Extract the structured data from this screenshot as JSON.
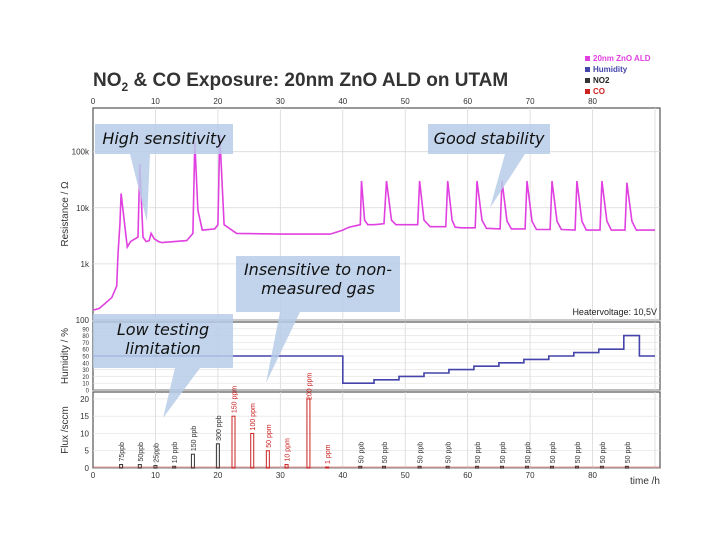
{
  "title": {
    "prefix": "NO",
    "sub": "2",
    "rest": " & CO Exposure: 20nm ZnO  ALD on UTAM"
  },
  "legend": [
    {
      "label": "20nm ZnO ALD",
      "color": "#e040e0"
    },
    {
      "label": "Humidity",
      "color": "#4444aa"
    },
    {
      "label": "NO2",
      "color": "#333333"
    },
    {
      "label": "CO",
      "color": "#cc2222"
    }
  ],
  "callouts": {
    "high_sensitivity": "High sensitivity",
    "good_stability": "Good stability",
    "insensitive": "Insensitive to non-measured gas",
    "low_limit": "Low testing limitation"
  },
  "chart_data": [
    {
      "type": "line",
      "name": "resistance",
      "ylabel": "Resistance / Ω",
      "yscale": "log",
      "ylim": [
        100,
        600000
      ],
      "xlim": [
        0,
        100
      ],
      "x_ticks_top": [
        0,
        10,
        20,
        30,
        40,
        50,
        60,
        70,
        80
      ],
      "y_ticks": [
        {
          "v": 100,
          "label": "100"
        },
        {
          "v": 1000,
          "label": "1k"
        },
        {
          "v": 10000,
          "label": "10k"
        },
        {
          "v": 100000,
          "label": "100k"
        }
      ],
      "annotation": "Heatervoltage: 10,5V",
      "series": [
        {
          "color": "#e040e0",
          "x": [
            0,
            1,
            3,
            3.8,
            4,
            4.3,
            4.5,
            5.3,
            5.5,
            6,
            7.2,
            7.5,
            8,
            8.5,
            9,
            9.3,
            9.8,
            10.5,
            11,
            15,
            16,
            16.3,
            16.8,
            17.5,
            19.5,
            20,
            20.3,
            21,
            23,
            30,
            35,
            38,
            40,
            41,
            42.8,
            43,
            43.5,
            44,
            45,
            46.6,
            47,
            47.8,
            48.5,
            50,
            52,
            52.3,
            53,
            54,
            55,
            56.5,
            56.8,
            57.5,
            58,
            59,
            61.2,
            61.5,
            62.3,
            63,
            65.2,
            65.5,
            66.3,
            67,
            69.2,
            69.5,
            70.3,
            71,
            73.2,
            73.5,
            74.3,
            75,
            77.2,
            77.5,
            78.3,
            79,
            81.2,
            81.5,
            82.3,
            83,
            85.2,
            85.5,
            86.3,
            87,
            88,
            89,
            90
          ],
          "y": [
            150,
            160,
            250,
            400,
            1500,
            5000,
            18000,
            3000,
            2000,
            2500,
            3000,
            60000,
            3000,
            2500,
            2600,
            3500,
            2800,
            2500,
            2400,
            2600,
            3500,
            150000,
            9000,
            4000,
            4200,
            5000,
            200000,
            5000,
            3500,
            3400,
            3400,
            3400,
            4000,
            4500,
            5000,
            30000,
            6000,
            5000,
            5000,
            5200,
            30000,
            6000,
            5000,
            5000,
            5000,
            30000,
            6000,
            4600,
            4600,
            4600,
            30000,
            6000,
            4500,
            4400,
            4400,
            30000,
            6000,
            4300,
            4200,
            30000,
            5800,
            4200,
            4200,
            30000,
            5800,
            4100,
            4100,
            30000,
            5800,
            4100,
            4000,
            30000,
            5800,
            4000,
            4000,
            30000,
            5800,
            4000,
            4000,
            28000,
            5800,
            4000,
            4000,
            4000,
            4000
          ]
        }
      ]
    },
    {
      "type": "line",
      "name": "humidity",
      "ylabel": "Humidity / %",
      "ylim": [
        0,
        100
      ],
      "y_ticks": [
        0,
        10,
        20,
        30,
        40,
        50,
        60,
        70,
        80,
        90
      ],
      "series": [
        {
          "color": "#4444aa",
          "x": [
            0,
            40,
            40,
            45,
            45,
            49,
            49,
            53,
            53,
            57,
            57,
            61,
            61,
            65,
            65,
            69,
            69,
            73,
            73,
            77,
            77,
            81,
            81,
            85,
            85,
            87.5,
            87.5,
            90
          ],
          "y": [
            50,
            50,
            10,
            10,
            15,
            15,
            20,
            20,
            25,
            25,
            30,
            30,
            35,
            35,
            40,
            40,
            45,
            45,
            50,
            50,
            55,
            55,
            60,
            60,
            80,
            80,
            50,
            50
          ]
        }
      ]
    },
    {
      "type": "bar",
      "name": "gas-flux",
      "ylabel": "Flux /sccm",
      "xlabel": "time  /h",
      "ylim": [
        0,
        22
      ],
      "xlim": [
        0,
        100
      ],
      "y_ticks": [
        0,
        5,
        10,
        15,
        20
      ],
      "x_ticks": [
        0,
        10,
        20,
        30,
        40,
        50,
        60,
        70,
        80
      ],
      "bars": [
        {
          "x": 4.5,
          "v": 1,
          "label": "75ppb",
          "color": "#333333"
        },
        {
          "x": 7.5,
          "v": 1,
          "label": "50ppb",
          "color": "#333333"
        },
        {
          "x": 10,
          "v": 0.7,
          "label": "25ppb",
          "color": "#333333"
        },
        {
          "x": 13,
          "v": 0.5,
          "label": "10 ppb",
          "color": "#333333"
        },
        {
          "x": 16,
          "v": 4,
          "label": "150 ppb",
          "color": "#333333"
        },
        {
          "x": 20,
          "v": 7,
          "label": "300 ppb",
          "color": "#333333"
        },
        {
          "x": 22.5,
          "v": 15,
          "label": "150 ppm",
          "color": "#cc2222"
        },
        {
          "x": 25.5,
          "v": 10,
          "label": "100 ppm",
          "color": "#cc2222"
        },
        {
          "x": 28,
          "v": 5,
          "label": "50 ppm",
          "color": "#cc2222"
        },
        {
          "x": 31,
          "v": 1,
          "label": "10 ppm",
          "color": "#cc2222"
        },
        {
          "x": 34.5,
          "v": 20,
          "label": "200 ppm",
          "color": "#cc2222"
        },
        {
          "x": 37.5,
          "v": 0.3,
          "label": "1 ppm",
          "color": "#cc2222"
        },
        {
          "x": 42.8,
          "v": 0.5,
          "label": "50 ppb",
          "color": "#333333"
        },
        {
          "x": 46.6,
          "v": 0.5,
          "label": "50 ppb",
          "color": "#333333"
        },
        {
          "x": 52.3,
          "v": 0.5,
          "label": "50 ppb",
          "color": "#333333"
        },
        {
          "x": 56.8,
          "v": 0.5,
          "label": "50 ppb",
          "color": "#333333"
        },
        {
          "x": 61.5,
          "v": 0.5,
          "label": "50 ppb",
          "color": "#333333"
        },
        {
          "x": 65.5,
          "v": 0.5,
          "label": "50 ppb",
          "color": "#333333"
        },
        {
          "x": 69.5,
          "v": 0.5,
          "label": "50 ppb",
          "color": "#333333"
        },
        {
          "x": 73.5,
          "v": 0.5,
          "label": "50 ppb",
          "color": "#333333"
        },
        {
          "x": 77.5,
          "v": 0.5,
          "label": "50 ppb",
          "color": "#333333"
        },
        {
          "x": 81.5,
          "v": 0.5,
          "label": "50 ppb",
          "color": "#333333"
        },
        {
          "x": 85.5,
          "v": 0.5,
          "label": "50 ppb",
          "color": "#333333"
        }
      ]
    }
  ]
}
